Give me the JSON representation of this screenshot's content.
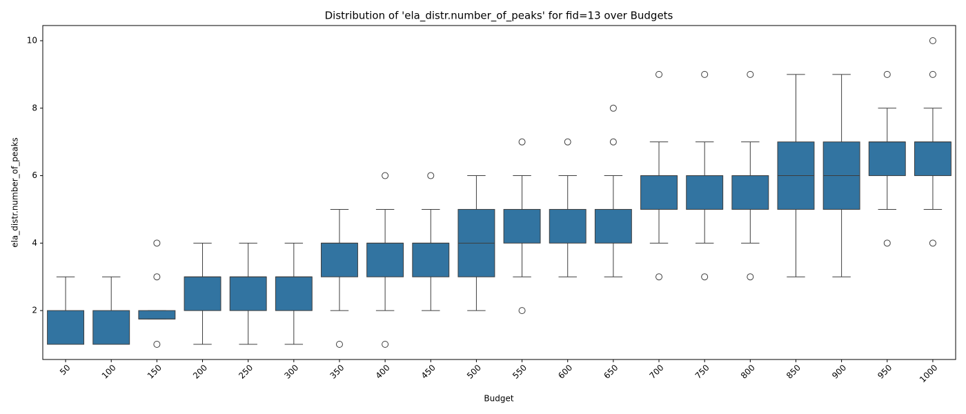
{
  "chart_data": {
    "type": "box",
    "title": "Distribution of 'ela_distr.number_of_peaks' for fid=13 over Budgets",
    "x_label": "Budget",
    "y_label": "ela_distr.number_of_peaks",
    "color": "#3274a1",
    "categories": [
      "50",
      "100",
      "150",
      "200",
      "250",
      "300",
      "350",
      "400",
      "450",
      "500",
      "550",
      "600",
      "650",
      "700",
      "750",
      "800",
      "850",
      "900",
      "950",
      "1000"
    ],
    "boxes": [
      {
        "low": 1,
        "q1": 1,
        "median": 1,
        "q3": 2,
        "high": 3,
        "outliers": []
      },
      {
        "low": 1,
        "q1": 1,
        "median": 1,
        "q3": 2,
        "high": 3,
        "outliers": []
      },
      {
        "low": 1.75,
        "q1": 1.75,
        "median": 1.75,
        "q3": 2,
        "high": 2,
        "outliers": [
          1,
          3,
          4
        ]
      },
      {
        "low": 1,
        "q1": 2,
        "median": 3,
        "q3": 3,
        "high": 4,
        "outliers": []
      },
      {
        "low": 1,
        "q1": 2,
        "median": 3,
        "q3": 3,
        "high": 4,
        "outliers": []
      },
      {
        "low": 1,
        "q1": 2,
        "median": 3,
        "q3": 3,
        "high": 4,
        "outliers": []
      },
      {
        "low": 2,
        "q1": 3,
        "median": 4,
        "q3": 4,
        "high": 5,
        "outliers": [
          1
        ]
      },
      {
        "low": 2,
        "q1": 3,
        "median": 4,
        "q3": 4,
        "high": 5,
        "outliers": [
          1,
          6
        ]
      },
      {
        "low": 2,
        "q1": 3,
        "median": 4,
        "q3": 4,
        "high": 5,
        "outliers": [
          6
        ]
      },
      {
        "low": 2,
        "q1": 3,
        "median": 4,
        "q3": 5,
        "high": 6,
        "outliers": []
      },
      {
        "low": 3,
        "q1": 4,
        "median": 5,
        "q3": 5,
        "high": 6,
        "outliers": [
          2,
          7
        ]
      },
      {
        "low": 3,
        "q1": 4,
        "median": 5,
        "q3": 5,
        "high": 6,
        "outliers": [
          7
        ]
      },
      {
        "low": 3,
        "q1": 4,
        "median": 5,
        "q3": 5,
        "high": 6,
        "outliers": [
          7,
          8
        ]
      },
      {
        "low": 4,
        "q1": 5,
        "median": 6,
        "q3": 6,
        "high": 7,
        "outliers": [
          3,
          9
        ]
      },
      {
        "low": 4,
        "q1": 5,
        "median": 6,
        "q3": 6,
        "high": 7,
        "outliers": [
          3,
          9
        ]
      },
      {
        "low": 4,
        "q1": 5,
        "median": 6,
        "q3": 6,
        "high": 7,
        "outliers": [
          3,
          9
        ]
      },
      {
        "low": 3,
        "q1": 5,
        "median": 6,
        "q3": 7,
        "high": 9,
        "outliers": []
      },
      {
        "low": 3,
        "q1": 5,
        "median": 6,
        "q3": 7,
        "high": 9,
        "outliers": []
      },
      {
        "low": 5,
        "q1": 6,
        "median": 7,
        "q3": 7,
        "high": 8,
        "outliers": [
          4,
          9
        ]
      },
      {
        "low": 5,
        "q1": 6,
        "median": 7,
        "q3": 7,
        "high": 8,
        "outliers": [
          4,
          9,
          10
        ]
      }
    ],
    "ylim": [
      0.55,
      10.45
    ],
    "yticks": [
      2,
      4,
      6,
      8,
      10
    ]
  }
}
